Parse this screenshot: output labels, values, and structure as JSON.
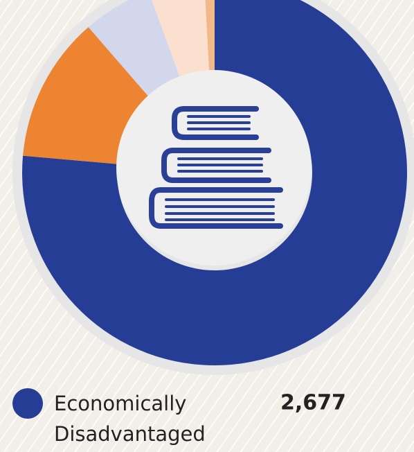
{
  "chart_data": {
    "type": "donut",
    "categories": [
      "Economically Disadvantaged",
      null,
      null,
      null,
      null
    ],
    "values": [
      2677,
      428,
      204,
      165,
      30
    ],
    "value_labels": [
      "2,677",
      null,
      null,
      null,
      null
    ],
    "colors": [
      "#263d96",
      "#ec8431",
      "#d3d7ec",
      "#fbe0cf",
      "#f2b88a"
    ],
    "legend": "bottom"
  }
}
